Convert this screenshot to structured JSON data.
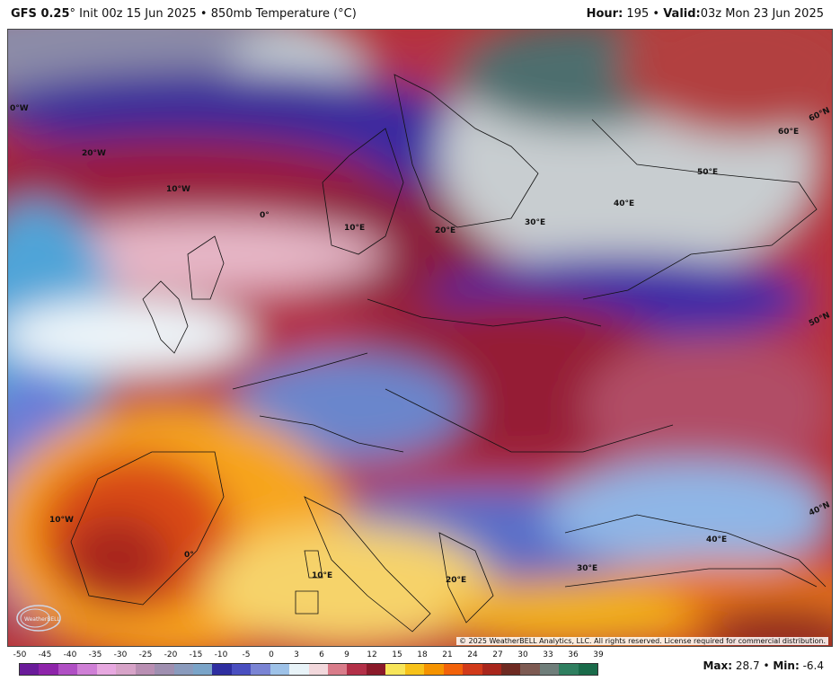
{
  "header": {
    "model": "GFS 0.25",
    "model_suffix": "°",
    "init": "Init 00z 15 Jun 2025",
    "separator": "•",
    "product": "850mb Temperature (°C)",
    "hour_label": "Hour:",
    "hour_value": "195",
    "valid_label": "Valid:",
    "valid_value": "03z Mon 23 Jun 2025"
  },
  "map": {
    "longitude_labels": [
      "0°W",
      "20°W",
      "10°W",
      "0°",
      "10°E",
      "20°E",
      "30°E",
      "40°E",
      "50°E",
      "60°E",
      "60°N",
      "50°N",
      "40°N",
      "10°W",
      "0°",
      "10°E",
      "20°E",
      "30°E",
      "40°E"
    ],
    "copyright": "© 2025 WeatherBELL Analytics, LLC. All rights reserved. License required for commercial distribution.",
    "logo_text": "WeatherBELL",
    "logo_icon": "weatherbell-logo-icon"
  },
  "colorbar": {
    "ticks": [
      "-50",
      "-45",
      "-40",
      "-35",
      "-30",
      "-25",
      "-20",
      "-15",
      "-10",
      "-5",
      "0",
      "3",
      "6",
      "9",
      "12",
      "15",
      "18",
      "21",
      "24",
      "27",
      "30",
      "33",
      "36",
      "39"
    ],
    "colors": [
      "#6a1b9a",
      "#8e24aa",
      "#b04fc4",
      "#cf7fd6",
      "#e7a8e0",
      "#d7a3c8",
      "#b98fb3",
      "#9f8fb0",
      "#8a9bbd",
      "#7aa4c8",
      "#2e2ea0",
      "#4a4fc0",
      "#7a84d4",
      "#9ec2e8",
      "#e8f3f8",
      "#f2d8dc",
      "#d97c8a",
      "#b33048",
      "#8b1a2a",
      "#f7e55a",
      "#f7c21a",
      "#f59300",
      "#f2620a",
      "#d13a1a",
      "#a8261c",
      "#6e2a22",
      "#7d5a52",
      "#6f7e7a",
      "#2f7f60",
      "#1a6b4a"
    ]
  },
  "stats": {
    "max_label": "Max:",
    "max_value": "28.7",
    "dot": "•",
    "min_label": "Min:",
    "min_value": "-6.4"
  }
}
